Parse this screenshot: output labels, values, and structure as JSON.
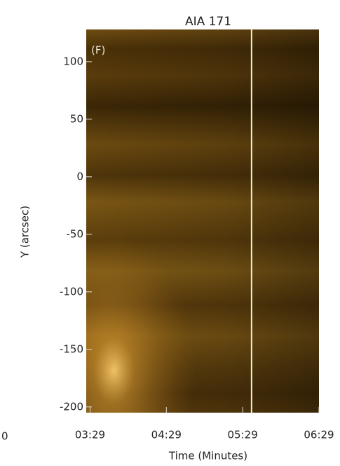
{
  "chart_data": {
    "type": "image",
    "title": "AIA 171",
    "annotation": "(F)",
    "x_label": "Time (Minutes)",
    "y_label": "Y (arcsec)",
    "xlim": [
      206,
      389
    ],
    "xticks": [
      {
        "value": 209,
        "label": "03:29"
      },
      {
        "value": 269,
        "label": "04:29"
      },
      {
        "value": 329,
        "label": "05:29"
      },
      {
        "value": 389,
        "label": "06:29"
      }
    ],
    "ylim": [
      -205,
      128
    ],
    "yticks": [
      -200,
      -150,
      -100,
      -50,
      0,
      50,
      100
    ],
    "marker_x": 336,
    "marker_color": "#f4f0c8",
    "left_panel_fragment": "0"
  }
}
